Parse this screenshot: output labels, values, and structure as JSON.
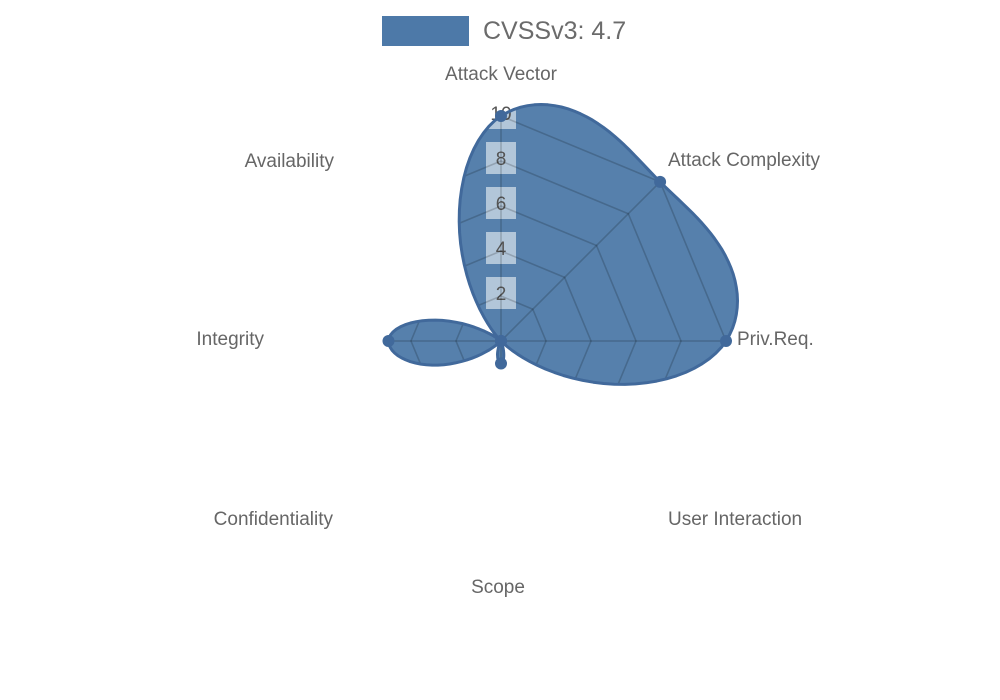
{
  "page": {
    "background_color": "#ffffff"
  },
  "legend": {
    "label": "CVSSv3: 4.7",
    "swatch_color": "#4d79a8"
  },
  "chart_data": {
    "type": "radar",
    "title": "CVSSv3: 4.7",
    "categories": [
      "Attack Vector",
      "Attack Complexity",
      "Priv.Req.",
      "User Interaction",
      "Scope",
      "Confidentiality",
      "Integrity",
      "Availability"
    ],
    "series": [
      {
        "name": "CVSSv3: 4.7",
        "values": [
          10,
          10,
          10,
          0,
          1,
          0,
          5,
          0
        ],
        "fill_color": "#4d79a8",
        "stroke_color": "#41699b",
        "marker": "dot"
      }
    ],
    "radial_ticks": [
      2,
      4,
      6,
      8,
      10
    ],
    "rlim": [
      0,
      10
    ],
    "start_axis": "top",
    "direction": "clockwise",
    "grid": "octagonal rings + spokes, visible only under the filled area",
    "grid_color": "rgba(0,0,0,0.18)",
    "tick_label_color": "#555555",
    "tick_box_color": "rgba(255,255,255,0.55)",
    "axis_label_color": "#666666",
    "legend_position": "top-center",
    "interpolation": "cubic"
  }
}
